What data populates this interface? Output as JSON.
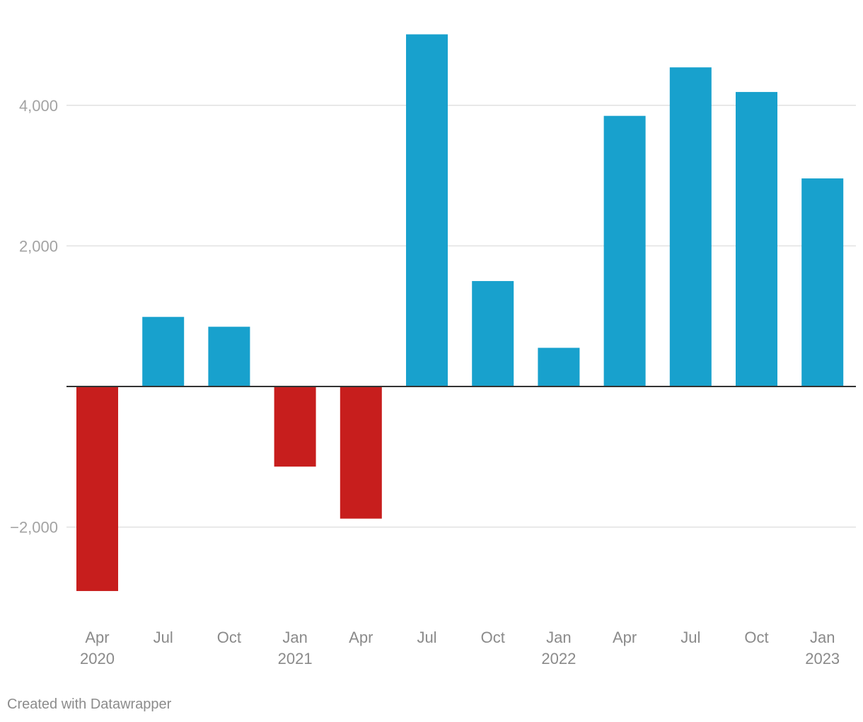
{
  "chart_data": {
    "type": "bar",
    "title": "",
    "xlabel": "",
    "ylabel": "",
    "categories": [
      "Apr 2020",
      "Jul 2020",
      "Oct 2020",
      "Jan 2021",
      "Apr 2021",
      "Jul 2021",
      "Oct 2021",
      "Jan 2022",
      "Apr 2022",
      "Jul 2022",
      "Oct 2022",
      "Jan 2023"
    ],
    "tick_labels": [
      {
        "line1": "Apr",
        "line2": "2020"
      },
      {
        "line1": "Jul",
        "line2": ""
      },
      {
        "line1": "Oct",
        "line2": ""
      },
      {
        "line1": "Jan",
        "line2": "2021"
      },
      {
        "line1": "Apr",
        "line2": ""
      },
      {
        "line1": "Jul",
        "line2": ""
      },
      {
        "line1": "Oct",
        "line2": ""
      },
      {
        "line1": "Jan",
        "line2": "2022"
      },
      {
        "line1": "Apr",
        "line2": ""
      },
      {
        "line1": "Jul",
        "line2": ""
      },
      {
        "line1": "Oct",
        "line2": ""
      },
      {
        "line1": "Jan",
        "line2": "2023"
      }
    ],
    "values": [
      -2910,
      990,
      850,
      -1140,
      -1880,
      5010,
      1500,
      550,
      3850,
      4540,
      4190,
      2960
    ],
    "ylim": [
      -3300,
      5300
    ],
    "yticks": [
      {
        "value": 4000,
        "label": "4,000"
      },
      {
        "value": 2000,
        "label": "2,000"
      },
      {
        "value": -2000,
        "label": "−2,000"
      }
    ],
    "grid": true,
    "colors": {
      "positive": "#18a1cd",
      "negative": "#c71e1d",
      "grid": "#e1e1e1",
      "zero_line": "#333333"
    }
  },
  "footer": {
    "credit": "Created with Datawrapper"
  }
}
